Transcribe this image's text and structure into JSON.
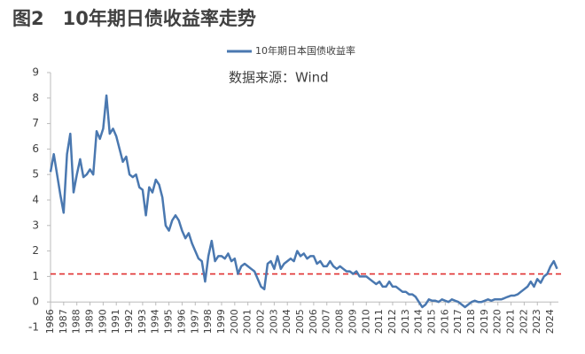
{
  "chart_data": {
    "type": "line",
    "title": "图2　10年期日债收益率走势",
    "annotation": "数据来源：Wind",
    "x": [
      1986,
      1986.25,
      1986.5,
      1986.75,
      1987,
      1987.25,
      1987.5,
      1987.75,
      1988,
      1988.25,
      1988.5,
      1988.75,
      1989,
      1989.25,
      1989.5,
      1989.75,
      1990,
      1990.25,
      1990.5,
      1990.75,
      1991,
      1991.25,
      1991.5,
      1991.75,
      1992,
      1992.25,
      1992.5,
      1992.75,
      1993,
      1993.25,
      1993.5,
      1993.75,
      1994,
      1994.25,
      1994.5,
      1994.75,
      1995,
      1995.25,
      1995.5,
      1995.75,
      1996,
      1996.25,
      1996.5,
      1996.75,
      1997,
      1997.25,
      1997.5,
      1997.75,
      1998,
      1998.25,
      1998.5,
      1998.75,
      1999,
      1999.25,
      1999.5,
      1999.75,
      2000,
      2000.25,
      2000.5,
      2000.75,
      2001,
      2001.25,
      2001.5,
      2001.75,
      2002,
      2002.25,
      2002.5,
      2002.75,
      2003,
      2003.25,
      2003.5,
      2003.75,
      2004,
      2004.25,
      2004.5,
      2004.75,
      2005,
      2005.25,
      2005.5,
      2005.75,
      2006,
      2006.25,
      2006.5,
      2006.75,
      2007,
      2007.25,
      2007.5,
      2007.75,
      2008,
      2008.25,
      2008.5,
      2008.75,
      2009,
      2009.25,
      2009.5,
      2009.75,
      2010,
      2010.25,
      2010.5,
      2010.75,
      2011,
      2011.25,
      2011.5,
      2011.75,
      2012,
      2012.25,
      2012.5,
      2012.75,
      2013,
      2013.25,
      2013.5,
      2013.75,
      2014,
      2014.25,
      2014.5,
      2014.75,
      2015,
      2015.25,
      2015.5,
      2015.75,
      2016,
      2016.25,
      2016.5,
      2016.75,
      2017,
      2017.25,
      2017.5,
      2017.75,
      2018,
      2018.25,
      2018.5,
      2018.75,
      2019,
      2019.25,
      2019.5,
      2019.75,
      2020,
      2020.25,
      2020.5,
      2020.75,
      2021,
      2021.25,
      2021.5,
      2021.75,
      2022,
      2022.25,
      2022.5,
      2022.75,
      2023,
      2023.25,
      2023.5,
      2023.75,
      2024,
      2024.25,
      2024.5
    ],
    "series": [
      {
        "name": "10年期日本国债收益率",
        "color": "#4a78b0",
        "values": [
          5.1,
          5.8,
          5.0,
          4.2,
          3.5,
          5.8,
          6.6,
          4.3,
          5.0,
          5.6,
          4.9,
          5.0,
          5.2,
          5.0,
          6.7,
          6.4,
          6.8,
          8.1,
          6.6,
          6.8,
          6.5,
          6.0,
          5.5,
          5.7,
          5.0,
          4.9,
          5.0,
          4.5,
          4.4,
          3.4,
          4.5,
          4.3,
          4.8,
          4.6,
          4.1,
          3.0,
          2.8,
          3.2,
          3.4,
          3.2,
          2.8,
          2.5,
          2.7,
          2.3,
          2.0,
          1.7,
          1.6,
          0.8,
          1.8,
          2.4,
          1.6,
          1.8,
          1.8,
          1.7,
          1.9,
          1.6,
          1.7,
          1.1,
          1.4,
          1.5,
          1.4,
          1.3,
          1.2,
          0.9,
          0.6,
          0.5,
          1.5,
          1.6,
          1.3,
          1.8,
          1.3,
          1.5,
          1.6,
          1.7,
          1.6,
          2.0,
          1.8,
          1.9,
          1.7,
          1.8,
          1.8,
          1.5,
          1.6,
          1.4,
          1.4,
          1.6,
          1.4,
          1.3,
          1.4,
          1.3,
          1.2,
          1.2,
          1.1,
          1.2,
          1.0,
          1.0,
          1.0,
          0.9,
          0.8,
          0.7,
          0.8,
          0.6,
          0.6,
          0.8,
          0.6,
          0.6,
          0.5,
          0.4,
          0.4,
          0.3,
          0.3,
          0.2,
          0.0,
          -0.2,
          -0.1,
          0.1,
          0.05,
          0.05,
          0.0,
          0.1,
          0.05,
          0.0,
          0.1,
          0.05,
          0.0,
          -0.1,
          -0.2,
          -0.1,
          0.0,
          0.05,
          0.0,
          0.0,
          0.05,
          0.1,
          0.05,
          0.1,
          0.1,
          0.1,
          0.15,
          0.2,
          0.25,
          0.25,
          0.3,
          0.4,
          0.5,
          0.6,
          0.8,
          0.6,
          0.9,
          0.75,
          1.0,
          1.1,
          1.4,
          1.6,
          1.3
        ]
      }
    ],
    "reference_line": 1.1,
    "reference_color": "#e03030",
    "xlim": [
      1986,
      2024.6
    ],
    "xticks": [
      1986,
      1987,
      1988,
      1989,
      1990,
      1991,
      1992,
      1993,
      1994,
      1995,
      1996,
      1997,
      1998,
      1999,
      2000,
      2001,
      2002,
      2003,
      2004,
      2005,
      2006,
      2007,
      2008,
      2009,
      2010,
      2011,
      2012,
      2013,
      2014,
      2015,
      2016,
      2017,
      2018,
      2019,
      2020,
      2021,
      2022,
      2023,
      2024
    ],
    "ylim": [
      -1,
      9
    ],
    "yticks": [
      -1,
      0,
      1,
      2,
      3,
      4,
      5,
      6,
      7,
      8,
      9
    ],
    "grid": false
  }
}
